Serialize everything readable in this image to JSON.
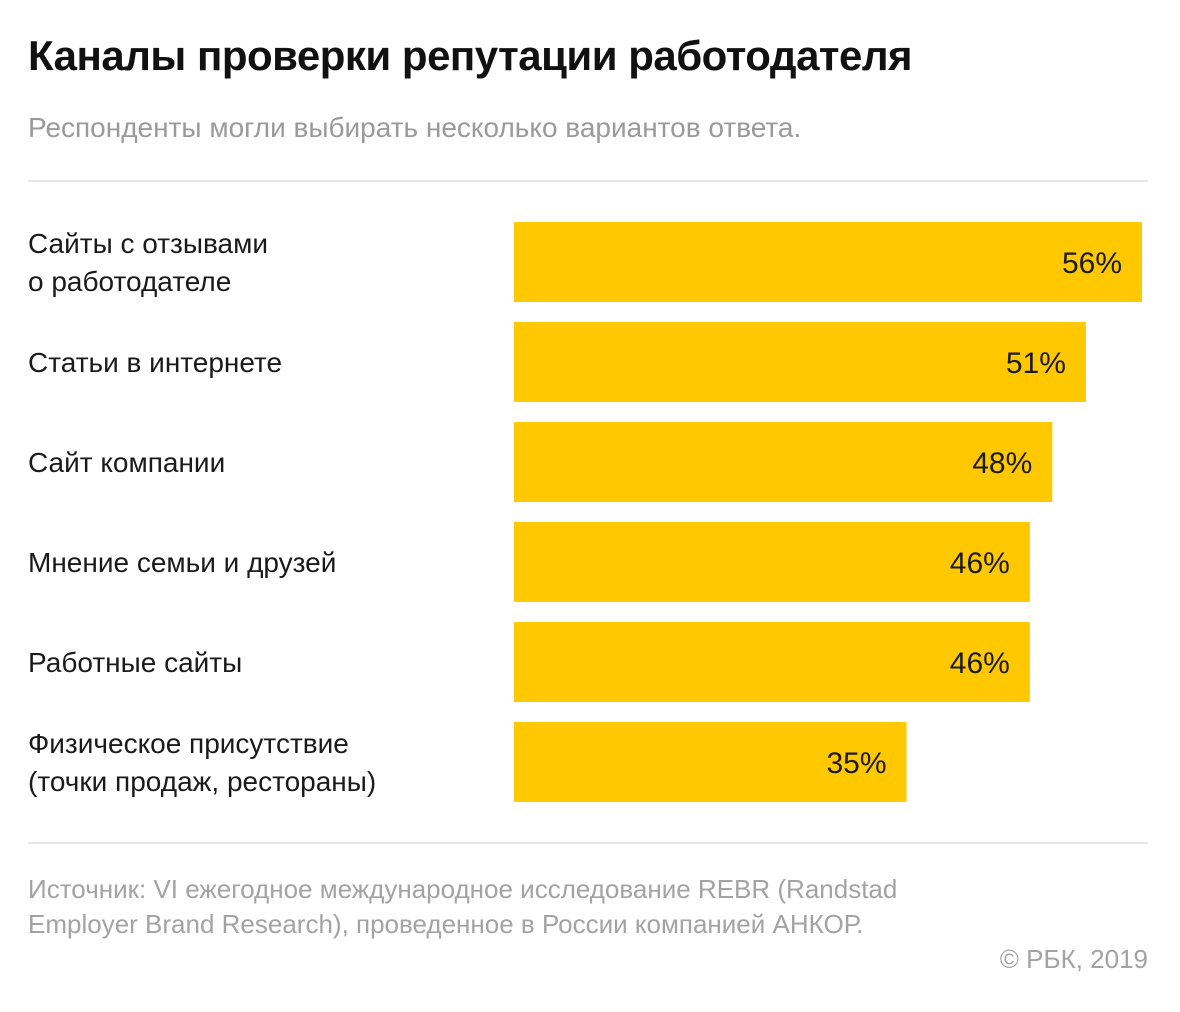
{
  "header": {
    "title": "Каналы проверки репутации работодателя",
    "subtitle": "Респонденты могли выбирать несколько вариантов ответа."
  },
  "chart_data": {
    "type": "bar",
    "orientation": "horizontal",
    "categories": [
      [
        "Сайты с отзывами",
        "о работодателе"
      ],
      [
        "Статьи в интернете"
      ],
      [
        "Сайт компании"
      ],
      [
        "Мнение семьи и друзей"
      ],
      [
        "Работные сайты"
      ],
      [
        "Физическое присутствие",
        "(точки продаж, рестораны)"
      ]
    ],
    "values": [
      56,
      51,
      48,
      46,
      46,
      35
    ],
    "value_labels": [
      "56%",
      "51%",
      "48%",
      "46%",
      "46%",
      "35%"
    ],
    "unit": "%",
    "title": "Каналы проверки репутации работодателя",
    "subtitle": "Респонденты могли выбирать несколько вариантов ответа.",
    "bar_color": "#FFC800",
    "grid": false,
    "legend": "none"
  },
  "footer": {
    "source": "Источник: VI ежегодное международное исследование REBR (Randstad Employer Brand Research), проведенное в России компанией АНКОР.",
    "credit": "© РБК, 2019"
  },
  "colors": {
    "accent": "#FFC800",
    "title": "#111111",
    "muted_text": "#9a9a9a",
    "rule": "#e4e4e4"
  }
}
